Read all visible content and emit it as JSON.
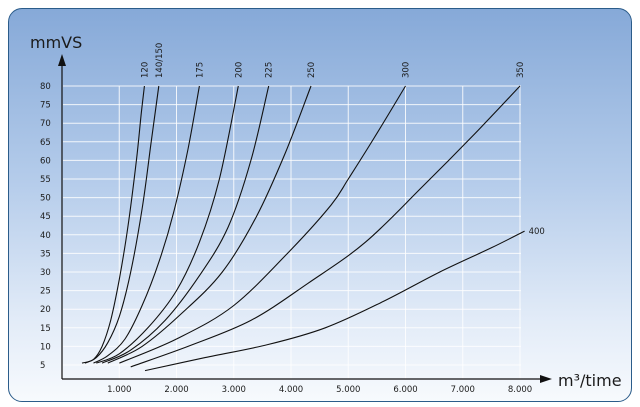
{
  "chart_data": {
    "type": "line",
    "ylabel": "mmVS",
    "xlabel": "m³/time",
    "xlim": [
      0,
      8000
    ],
    "ylim": [
      0,
      85
    ],
    "xticks": [
      1000,
      2000,
      3000,
      4000,
      5000,
      6000,
      7000,
      8000
    ],
    "xtick_labels": [
      "1.000",
      "2.000",
      "3.000",
      "4.000",
      "5.000",
      "6.000",
      "7.000",
      "8.000"
    ],
    "yticks": [
      5,
      10,
      15,
      20,
      25,
      30,
      35,
      40,
      45,
      50,
      55,
      60,
      65,
      70,
      75,
      80
    ],
    "ytick_labels": [
      "5",
      "10",
      "15",
      "20",
      "25",
      "30",
      "35",
      "40",
      "45",
      "50",
      "55",
      "60",
      "65",
      "70",
      "75",
      "80"
    ],
    "grid": true,
    "series": [
      {
        "name": "120",
        "x": [
          350,
          550,
          700,
          850,
          1000,
          1150,
          1300,
          1380,
          1440
        ],
        "y": [
          5.5,
          6.5,
          10,
          17,
          28,
          42,
          60,
          72,
          80
        ]
      },
      {
        "name": "140/150",
        "x": [
          400,
          600,
          800,
          1000,
          1200,
          1400,
          1550,
          1690
        ],
        "y": [
          5.5,
          7,
          11,
          18,
          30,
          47,
          64,
          80
        ]
      },
      {
        "name": "175",
        "x": [
          550,
          800,
          1100,
          1400,
          1700,
          1950,
          2200,
          2400
        ],
        "y": [
          5.5,
          7.5,
          12,
          21,
          33,
          46,
          63,
          80
        ]
      },
      {
        "name": "200",
        "x": [
          600,
          1000,
          1500,
          2000,
          2400,
          2750,
          3080
        ],
        "y": [
          5.5,
          8,
          15,
          25,
          38,
          55,
          80
        ]
      },
      {
        "name": "225",
        "x": [
          700,
          1200,
          1800,
          2400,
          2900,
          3300,
          3610
        ],
        "y": [
          5.5,
          9,
          17,
          29,
          42,
          60,
          80
        ]
      },
      {
        "name": "250",
        "x": [
          800,
          1400,
          2100,
          2800,
          3400,
          3900,
          4350
        ],
        "y": [
          5.5,
          10,
          19,
          30,
          45,
          62,
          80
        ]
      },
      {
        "name": "300",
        "x": [
          1000,
          2000,
          3000,
          4000,
          4700,
          5000,
          5450,
          6000
        ],
        "y": [
          5.5,
          12,
          21,
          36,
          48,
          55,
          66,
          80
        ]
      },
      {
        "name": "350",
        "x": [
          1200,
          2200,
          3300,
          4300,
          5300,
          6300,
          7200,
          8000
        ],
        "y": [
          4.5,
          10,
          17,
          27,
          38,
          53,
          67,
          80
        ]
      },
      {
        "name": "400",
        "x": [
          1450,
          2500,
          3600,
          4600,
          5600,
          6600,
          7500,
          8080
        ],
        "y": [
          3.5,
          7,
          10.5,
          15,
          22,
          30,
          36.5,
          41
        ]
      }
    ]
  }
}
